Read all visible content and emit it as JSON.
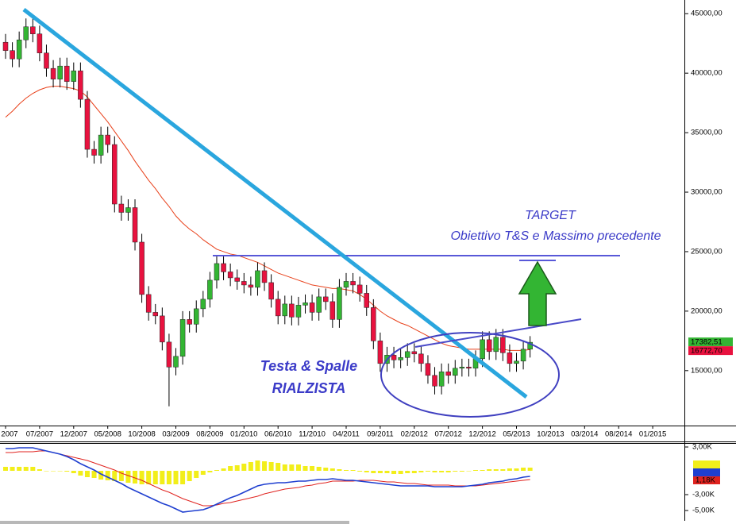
{
  "chart_data": [
    {
      "type": "candlestick",
      "x": [
        "02/2007",
        "03/2007",
        "04/2007",
        "05/2007",
        "06/2007",
        "07/2007",
        "08/2007",
        "09/2007",
        "10/2007",
        "11/2007",
        "12/2007",
        "01/2008",
        "02/2008",
        "03/2008",
        "04/2008",
        "05/2008",
        "06/2008",
        "07/2008",
        "08/2008",
        "09/2008",
        "10/2008",
        "11/2008",
        "12/2008",
        "01/2009",
        "02/2009",
        "03/2009",
        "04/2009",
        "05/2009",
        "06/2009",
        "07/2009",
        "08/2009",
        "09/2009",
        "10/2009",
        "11/2009",
        "12/2009",
        "01/2010",
        "02/2010",
        "03/2010",
        "04/2010",
        "05/2010",
        "06/2010",
        "07/2010",
        "08/2010",
        "09/2010",
        "10/2010",
        "11/2010",
        "12/2010",
        "01/2011",
        "02/2011",
        "03/2011",
        "04/2011",
        "05/2011",
        "06/2011",
        "07/2011",
        "08/2011",
        "09/2011",
        "10/2011",
        "11/2011",
        "12/2011",
        "01/2012",
        "02/2012",
        "03/2012",
        "04/2012",
        "05/2012",
        "06/2012",
        "07/2012",
        "08/2012",
        "09/2012",
        "10/2012",
        "11/2012",
        "12/2012",
        "01/2013",
        "02/2013",
        "03/2013",
        "04/2013",
        "05/2013",
        "06/2013",
        "07/2013"
      ],
      "open": [
        42600,
        41900,
        41200,
        42800,
        43900,
        43300,
        41700,
        40400,
        39500,
        40600,
        39300,
        40200,
        37800,
        33600,
        33100,
        34800,
        34000,
        29000,
        28300,
        28700,
        25800,
        21400,
        19900,
        19600,
        17400,
        15300,
        16200,
        19300,
        18900,
        20200,
        21000,
        22600,
        24000,
        23300,
        22800,
        22500,
        22200,
        22000,
        23400,
        22400,
        21000,
        19600,
        20600,
        19500,
        20500,
        20700,
        19900,
        21200,
        20800,
        19300,
        22000,
        22500,
        22200,
        21500,
        20300,
        17500,
        15600,
        16300,
        15900,
        16100,
        16600,
        16400,
        15600,
        14600,
        13700,
        14900,
        14600,
        15200,
        15300,
        15200,
        16000,
        17600,
        16600,
        17800,
        16500,
        15600,
        15800,
        16800
      ],
      "high": [
        43300,
        42600,
        43500,
        44600,
        44600,
        44000,
        42400,
        41100,
        41300,
        41300,
        40900,
        40900,
        38500,
        34300,
        35500,
        35500,
        34700,
        29700,
        29400,
        29400,
        26500,
        22100,
        20600,
        20300,
        18100,
        16900,
        20000,
        20000,
        20900,
        21700,
        23300,
        24700,
        24700,
        24000,
        23500,
        23200,
        22900,
        24100,
        24100,
        23100,
        21700,
        21300,
        21300,
        21200,
        21400,
        21400,
        21900,
        21900,
        21500,
        22700,
        23200,
        23200,
        22900,
        22200,
        21000,
        18200,
        17000,
        17000,
        16800,
        17300,
        17300,
        17100,
        16300,
        15300,
        15600,
        15600,
        15900,
        16000,
        16000,
        16700,
        18300,
        18300,
        18500,
        18500,
        17200,
        16500,
        17500,
        17900
      ],
      "low": [
        41200,
        40500,
        40500,
        42100,
        42600,
        41000,
        39700,
        38800,
        38800,
        38600,
        38600,
        37100,
        32900,
        32400,
        32400,
        33300,
        28300,
        27600,
        27600,
        25100,
        20700,
        19200,
        18900,
        16700,
        12000,
        14600,
        15500,
        18200,
        18200,
        19500,
        20300,
        21900,
        22600,
        22100,
        21800,
        21500,
        21300,
        21300,
        21700,
        20300,
        18900,
        18900,
        18800,
        18800,
        19800,
        19200,
        19200,
        20100,
        18600,
        18600,
        21300,
        21500,
        20800,
        19600,
        16800,
        14900,
        14900,
        15200,
        15200,
        15400,
        15700,
        14900,
        13900,
        13000,
        13000,
        13900,
        13900,
        14500,
        14500,
        14500,
        15300,
        15900,
        15900,
        15800,
        14900,
        14900,
        15100,
        16100
      ],
      "close": [
        41900,
        41200,
        42800,
        43900,
        43300,
        41700,
        40400,
        39500,
        40600,
        39300,
        40200,
        37800,
        33600,
        33100,
        34800,
        34000,
        29000,
        28300,
        28700,
        25800,
        21400,
        19900,
        19600,
        17400,
        15300,
        16200,
        19300,
        18900,
        20200,
        21000,
        22600,
        24000,
        23300,
        22800,
        22500,
        22200,
        22000,
        23400,
        22400,
        21000,
        19600,
        20600,
        19500,
        20500,
        20700,
        19900,
        21200,
        20800,
        19300,
        22000,
        22500,
        22200,
        21500,
        20300,
        17500,
        15600,
        16300,
        15900,
        16100,
        16600,
        16400,
        15600,
        14600,
        13700,
        14900,
        14600,
        15200,
        15300,
        15200,
        16000,
        17600,
        16600,
        17800,
        16500,
        15600,
        15800,
        16800,
        17382.51
      ],
      "moving_average": [
        36300,
        36800,
        37400,
        37900,
        38300,
        38600,
        38800,
        38900,
        38900,
        38800,
        38700,
        38500,
        38000,
        37300,
        36600,
        35900,
        35100,
        34300,
        33500,
        32600,
        31800,
        31000,
        30300,
        29500,
        28800,
        28000,
        27400,
        26900,
        26500,
        26000,
        25600,
        25200,
        25000,
        24800,
        24700,
        24500,
        24300,
        24100,
        23800,
        23500,
        23200,
        23000,
        22800,
        22600,
        22400,
        22200,
        22100,
        22000,
        21900,
        21900,
        21800,
        21700,
        21400,
        21000,
        20500,
        20000,
        19600,
        19300,
        19000,
        18800,
        18500,
        18200,
        17900,
        17600,
        17300,
        17100,
        17000,
        16900,
        16800,
        16800,
        16800,
        16800,
        16800,
        16800,
        16700,
        16700,
        16700,
        16772.7
      ],
      "up_color": "#33b533",
      "down_color": "#e8123f",
      "ma_color": "#e8401a",
      "close_label": "17382,51",
      "ma_label": "16772,70",
      "ylim": [
        10450,
        46150
      ],
      "yticks": [
        {
          "value": 45000,
          "label": "45000,00"
        },
        {
          "value": 40000,
          "label": "40000,00"
        },
        {
          "value": 35000,
          "label": "35000,00"
        },
        {
          "value": 30000,
          "label": "30000,00"
        },
        {
          "value": 25000,
          "label": "25000,00"
        },
        {
          "value": 20000,
          "label": "20000,00"
        },
        {
          "value": 15000,
          "label": "15000,00"
        }
      ],
      "xticks": [
        {
          "value": "02/2007",
          "label": "2007"
        },
        "07/2007",
        "12/2007",
        "05/2008",
        "10/2008",
        "03/2009",
        "08/2009",
        "01/2010",
        "06/2010",
        "11/2010",
        "04/2011",
        "09/2011",
        "02/2012",
        "07/2012",
        "12/2012",
        "05/2013",
        "10/2013",
        "03/2014",
        "08/2014",
        "01/2015"
      ],
      "grid": false,
      "annotations": {
        "target": "TARGET",
        "target_note": "Obiettivo T&S e Massimo precedente",
        "pattern_line1": "Testa & Spalle",
        "pattern_line2": "RIALZISTA"
      }
    },
    {
      "type": "macd",
      "macd": [
        2800,
        2800,
        2900,
        2900,
        2900,
        2700,
        2500,
        2300,
        2100,
        1800,
        1400,
        900,
        500,
        100,
        -400,
        -800,
        -1200,
        -1600,
        -2100,
        -2500,
        -2900,
        -3300,
        -3700,
        -4100,
        -4400,
        -4800,
        -5200,
        -5100,
        -5000,
        -4900,
        -4600,
        -4200,
        -3800,
        -3400,
        -3100,
        -2700,
        -2300,
        -1900,
        -1700,
        -1600,
        -1500,
        -1500,
        -1400,
        -1300,
        -1300,
        -1200,
        -1100,
        -1100,
        -1000,
        -1100,
        -1200,
        -1200,
        -1300,
        -1400,
        -1500,
        -1600,
        -1700,
        -1800,
        -1900,
        -1900,
        -1900,
        -1900,
        -1900,
        -2000,
        -2000,
        -2000,
        -2000,
        -2000,
        -1900,
        -1800,
        -1700,
        -1500,
        -1400,
        -1300,
        -1100,
        -1000,
        -800,
        -700
      ],
      "signal": [
        2300,
        2300,
        2400,
        2400,
        2400,
        2500,
        2500,
        2300,
        2100,
        1900,
        1700,
        1500,
        1300,
        1000,
        700,
        400,
        100,
        -300,
        -600,
        -900,
        -1200,
        -1600,
        -2000,
        -2400,
        -2700,
        -3100,
        -3500,
        -3800,
        -4100,
        -4400,
        -4400,
        -4300,
        -4100,
        -4000,
        -3800,
        -3600,
        -3400,
        -3200,
        -2900,
        -2700,
        -2500,
        -2300,
        -2200,
        -2100,
        -1900,
        -1800,
        -1600,
        -1500,
        -1300,
        -1300,
        -1300,
        -1300,
        -1200,
        -1200,
        -1200,
        -1300,
        -1400,
        -1400,
        -1500,
        -1600,
        -1600,
        -1700,
        -1800,
        -1800,
        -1800,
        -1800,
        -1900,
        -1900,
        -1900,
        -1900,
        -1800,
        -1700,
        -1600,
        -1500,
        -1400,
        -1300,
        -1200,
        -1100
      ],
      "histogram": [
        500,
        500,
        500,
        500,
        500,
        200,
        0,
        0,
        0,
        -100,
        -300,
        -600,
        -800,
        -900,
        -1100,
        -1200,
        -1300,
        -1300,
        -1500,
        -1600,
        -1700,
        -1700,
        -1700,
        -1700,
        -1700,
        -1700,
        -1700,
        -1300,
        -900,
        -500,
        -200,
        100,
        300,
        600,
        700,
        900,
        1100,
        1300,
        1200,
        1100,
        1000,
        800,
        800,
        800,
        600,
        600,
        500,
        400,
        300,
        200,
        100,
        100,
        -100,
        -200,
        -300,
        -300,
        -300,
        -400,
        -400,
        -300,
        -300,
        -200,
        -100,
        -200,
        -200,
        -200,
        -100,
        -100,
        0,
        100,
        100,
        200,
        200,
        200,
        300,
        300,
        400,
        400
      ],
      "macd_color": "#1f3fd0",
      "signal_color": "#e0231f",
      "histogram_color": "#f2ee1a",
      "box_label": "1,18K",
      "ylim": [
        -6200,
        3500
      ],
      "yticks": [
        {
          "value": 3000,
          "label": "3,00K"
        },
        {
          "value": -3000,
          "label": "-3,00K"
        },
        {
          "value": -5000,
          "label": "-5,00K"
        }
      ]
    }
  ]
}
